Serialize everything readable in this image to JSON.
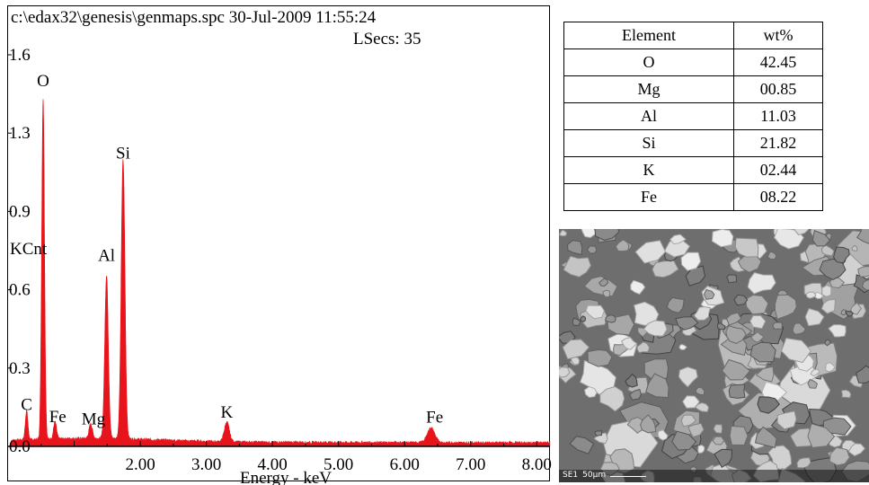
{
  "spectrum": {
    "file_header": "c:\\edax32\\genesis\\genmaps.spc 30-Jul-2009 11:55:24",
    "lsecs": "LSecs: 35"
  },
  "chart_data": {
    "type": "area",
    "xlabel": "Energy - keV",
    "ylabel": "KCnt",
    "xlim": [
      0.0,
      8.2
    ],
    "ylim": [
      0.0,
      1.6
    ],
    "xticks": [
      "2.00",
      "3.00",
      "4.00",
      "5.00",
      "6.00",
      "7.00",
      "8.00"
    ],
    "xtick_values": [
      2,
      3,
      4,
      5,
      6,
      7,
      8
    ],
    "yticks": [
      "0.0",
      "0.3",
      "0.6",
      "0.9",
      "1.3",
      "1.6"
    ],
    "ytick_values": [
      0.0,
      0.32,
      0.64,
      0.96,
      1.28,
      1.6
    ],
    "series": [
      {
        "color": "#e8141c",
        "peaks": [
          {
            "label": "C",
            "x": 0.28,
            "y": 0.12
          },
          {
            "label": "O",
            "x": 0.53,
            "y": 1.39
          },
          {
            "label": "Fe",
            "x": 0.71,
            "y": 0.07
          },
          {
            "label": "Mg",
            "x": 1.25,
            "y": 0.06
          },
          {
            "label": "Al",
            "x": 1.49,
            "y": 0.67
          },
          {
            "label": "Si",
            "x": 1.74,
            "y": 1.14
          },
          {
            "label": "K",
            "x": 3.31,
            "y": 0.08
          },
          {
            "label": "Fe",
            "x": 6.4,
            "y": 0.06
          }
        ]
      }
    ]
  },
  "composition_table": {
    "headers": [
      "Element",
      "wt%"
    ],
    "rows": [
      [
        "O",
        "42.45"
      ],
      [
        "Mg",
        "00.85"
      ],
      [
        "Al",
        "11.03"
      ],
      [
        "Si",
        "21.82"
      ],
      [
        "K",
        "02.44"
      ],
      [
        "Fe",
        "08.22"
      ]
    ]
  },
  "sem_image": {
    "caption_mode": "SE1",
    "caption_scale": "50µm"
  }
}
